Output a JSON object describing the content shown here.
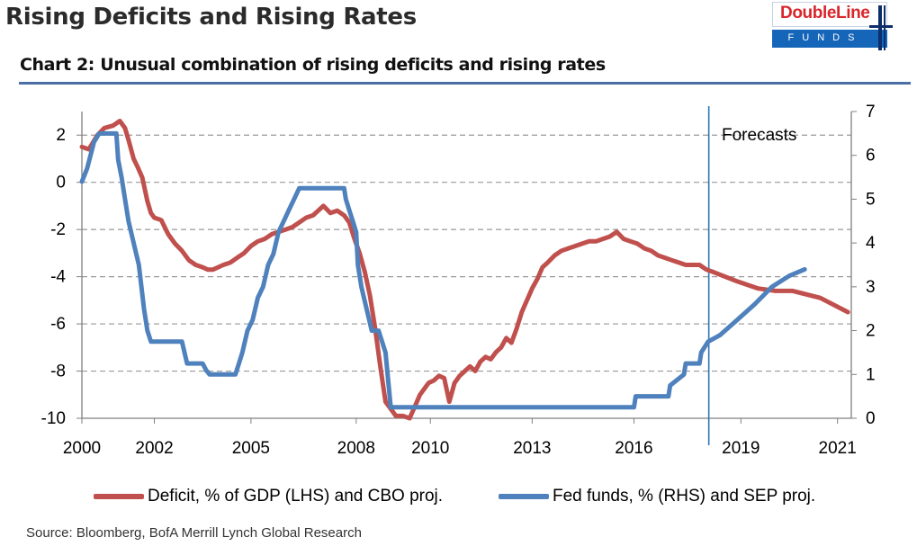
{
  "header": {
    "title": "Rising Deficits and Rising Rates",
    "logo_name": "DoubleLine",
    "logo_sub": "FUNDS"
  },
  "chart_heading": "Chart 2: Unusual combination of rising deficits and rising rates",
  "legend": {
    "deficit_label": "Deficit, % of GDP (LHS) and CBO proj.",
    "fedfunds_label": "Fed funds, % (RHS) and SEP proj."
  },
  "source": "Source: Bloomberg, BofA Merrill Lynch Global Research",
  "colors": {
    "deficit": "#c0504d",
    "fed_funds": "#4f81bd",
    "forecast_line": "#2e75b6",
    "grid": "#999999"
  },
  "chart_data": {
    "type": "line",
    "title": "Chart 2: Unusual combination of rising deficits and rising rates",
    "annotation": "Forecasts",
    "forecast_start": 2018.17,
    "x_tick_labels": [
      "2000",
      "2002",
      "2005",
      "2008",
      "2010",
      "2013",
      "2016",
      "2019",
      "2021"
    ],
    "x_ticks": [
      2000,
      2002.1,
      2004.9,
      2007.95,
      2010.1,
      2013.05,
      2016.0,
      2019.1,
      2021.9
    ],
    "xlim": [
      2000,
      2022.3
    ],
    "ylim_left": [
      -10,
      3
    ],
    "ylim_right": [
      0,
      7
    ],
    "y_left_ticks": [
      2,
      0,
      -2,
      -4,
      -6,
      -8,
      -10
    ],
    "y_right_ticks": [
      7,
      6,
      5,
      4,
      3,
      2,
      1,
      0
    ],
    "grid": "horizontal dashed",
    "series": [
      {
        "name": "Deficit, % of GDP (LHS) and CBO proj.",
        "axis": "left",
        "x": [
          2000.0,
          2000.2,
          2000.45,
          2000.65,
          2000.9,
          2001.1,
          2001.25,
          2001.35,
          2001.5,
          2001.6,
          2001.75,
          2001.9,
          2002.0,
          2002.1,
          2002.3,
          2002.5,
          2002.7,
          2002.9,
          2003.1,
          2003.3,
          2003.5,
          2003.65,
          2003.8,
          2003.95,
          2004.1,
          2004.3,
          2004.5,
          2004.7,
          2004.9,
          2005.1,
          2005.3,
          2005.5,
          2005.7,
          2005.9,
          2006.1,
          2006.3,
          2006.5,
          2006.7,
          2006.85,
          2007.0,
          2007.2,
          2007.4,
          2007.6,
          2007.75,
          2007.9,
          2008.05,
          2008.2,
          2008.35,
          2008.5,
          2008.65,
          2008.8,
          2008.95,
          2009.1,
          2009.3,
          2009.5,
          2009.65,
          2009.8,
          2009.95,
          2010.05,
          2010.2,
          2010.35,
          2010.5,
          2010.65,
          2010.8,
          2010.95,
          2011.1,
          2011.25,
          2011.4,
          2011.55,
          2011.7,
          2011.85,
          2012.0,
          2012.15,
          2012.3,
          2012.45,
          2012.6,
          2012.75,
          2012.9,
          2013.05,
          2013.2,
          2013.35,
          2013.5,
          2013.7,
          2013.9,
          2014.1,
          2014.3,
          2014.5,
          2014.7,
          2014.9,
          2015.1,
          2015.3,
          2015.5,
          2015.7,
          2015.9,
          2016.1,
          2016.3,
          2016.5,
          2016.7,
          2016.9,
          2017.1,
          2017.3,
          2017.5,
          2017.7,
          2017.9,
          2018.1,
          2018.3,
          2019.0,
          2019.6,
          2020.1,
          2020.6,
          2021.4,
          2022.2
        ],
        "values": [
          1.5,
          1.4,
          2.0,
          2.3,
          2.4,
          2.6,
          2.3,
          1.8,
          1.0,
          0.7,
          0.2,
          -0.8,
          -1.3,
          -1.5,
          -1.6,
          -2.2,
          -2.6,
          -2.9,
          -3.3,
          -3.5,
          -3.6,
          -3.7,
          -3.7,
          -3.6,
          -3.5,
          -3.4,
          -3.2,
          -3.0,
          -2.7,
          -2.5,
          -2.4,
          -2.2,
          -2.1,
          -2.0,
          -1.9,
          -1.7,
          -1.5,
          -1.4,
          -1.2,
          -1.0,
          -1.3,
          -1.2,
          -1.4,
          -1.7,
          -2.4,
          -3.0,
          -3.8,
          -4.8,
          -6.2,
          -7.8,
          -9.3,
          -9.6,
          -9.9,
          -9.9,
          -10.0,
          -9.5,
          -9.0,
          -8.7,
          -8.5,
          -8.4,
          -8.2,
          -8.3,
          -9.3,
          -8.5,
          -8.2,
          -8.0,
          -7.8,
          -8.0,
          -7.6,
          -7.4,
          -7.5,
          -7.2,
          -7.0,
          -6.6,
          -6.8,
          -6.2,
          -5.5,
          -5.0,
          -4.5,
          -4.1,
          -3.6,
          -3.4,
          -3.1,
          -2.9,
          -2.8,
          -2.7,
          -2.6,
          -2.5,
          -2.5,
          -2.4,
          -2.3,
          -2.1,
          -2.4,
          -2.5,
          -2.6,
          -2.8,
          -2.9,
          -3.1,
          -3.2,
          -3.3,
          -3.4,
          -3.5,
          -3.5,
          -3.5,
          -3.7,
          -3.8,
          -4.2,
          -4.5,
          -4.6,
          -4.6,
          -4.9,
          -5.5
        ]
      },
      {
        "name": "Fed funds, % (RHS) and SEP proj.",
        "axis": "right",
        "x": [
          2000.0,
          2000.15,
          2000.35,
          2000.5,
          2001.0,
          2001.05,
          2001.15,
          2001.25,
          2001.35,
          2001.5,
          2001.65,
          2001.8,
          2001.9,
          2002.0,
          2002.9,
          2003.05,
          2003.5,
          2003.6,
          2003.7,
          2004.45,
          2004.55,
          2004.65,
          2004.8,
          2004.95,
          2005.1,
          2005.25,
          2005.4,
          2005.55,
          2005.7,
          2005.85,
          2006.0,
          2006.15,
          2006.3,
          2006.45,
          2007.6,
          2007.65,
          2007.75,
          2007.85,
          2007.95,
          2008.0,
          2008.1,
          2008.25,
          2008.4,
          2008.6,
          2008.8,
          2008.95,
          2016.0,
          2016.05,
          2017.0,
          2017.05,
          2017.45,
          2017.5,
          2017.9,
          2017.95,
          2018.15,
          2018.5,
          2019.0,
          2019.5,
          2020.0,
          2020.5,
          2020.95
        ],
        "values": [
          5.4,
          5.7,
          6.3,
          6.5,
          6.5,
          5.9,
          5.5,
          5.0,
          4.5,
          4.0,
          3.5,
          2.5,
          2.0,
          1.75,
          1.75,
          1.25,
          1.25,
          1.1,
          1.0,
          1.0,
          1.25,
          1.5,
          2.0,
          2.25,
          2.75,
          3.0,
          3.5,
          3.75,
          4.25,
          4.5,
          4.75,
          5.0,
          5.25,
          5.25,
          5.25,
          5.0,
          4.75,
          4.5,
          4.25,
          3.5,
          3.0,
          2.5,
          2.0,
          2.0,
          1.5,
          0.25,
          0.25,
          0.5,
          0.5,
          0.75,
          1.0,
          1.25,
          1.25,
          1.5,
          1.75,
          1.9,
          2.25,
          2.6,
          3.0,
          3.25,
          3.4
        ]
      }
    ]
  }
}
